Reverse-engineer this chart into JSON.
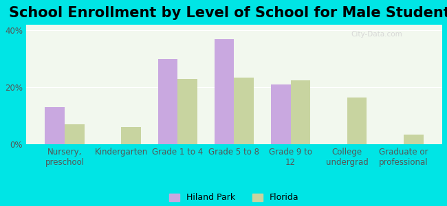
{
  "title": "School Enrollment by Level of School for Male Students",
  "categories": [
    "Nursery,\npreschool",
    "Kindergarten",
    "Grade 1 to 4",
    "Grade 5 to 8",
    "Grade 9 to\n12",
    "College\nundergrad",
    "Graduate or\nprofessional"
  ],
  "hiland_park": [
    13,
    0,
    30,
    37,
    21,
    0,
    0
  ],
  "florida": [
    7,
    6,
    23,
    23.5,
    22.5,
    16.5,
    3.5
  ],
  "hiland_color": "#c9a8e0",
  "florida_color": "#c8d4a0",
  "background_color": "#00e5e5",
  "plot_bg": "#f2f8ee",
  "ylim": [
    0,
    42
  ],
  "yticks": [
    0,
    20,
    40
  ],
  "ytick_labels": [
    "0%",
    "20%",
    "40%"
  ],
  "title_fontsize": 15,
  "tick_fontsize": 8.5,
  "legend_fontsize": 9,
  "bar_width": 0.35
}
